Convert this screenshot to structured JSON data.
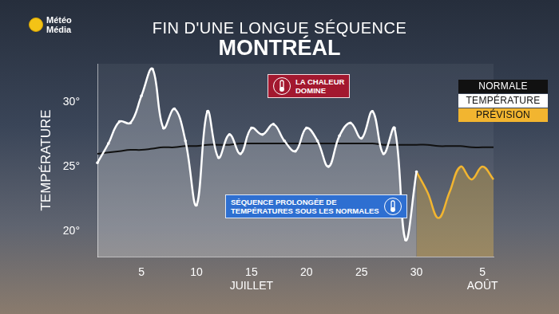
{
  "chart_data": {
    "type": "line",
    "brand": [
      "Météo",
      "Média"
    ],
    "title": "FIN D'UNE LONGUE SÉQUENCE",
    "subtitle": "MONTRÉAL",
    "y_label": "TEMPÉRATURE",
    "categories": [
      null,
      null,
      null,
      null,
      "5",
      null,
      null,
      null,
      null,
      "10",
      null,
      null,
      null,
      null,
      "15",
      null,
      null,
      null,
      null,
      "20",
      null,
      null,
      null,
      null,
      "25",
      null,
      null,
      null,
      null,
      "30",
      null,
      null,
      null,
      null,
      null,
      "5",
      null
    ],
    "x_groups": [
      {
        "label": "JUILLET",
        "at": 14
      },
      {
        "label": "AOÛT",
        "at": 35
      }
    ],
    "ylim": [
      18,
      33
    ],
    "yticks": [
      {
        "value": 20,
        "label": "20°"
      },
      {
        "value": 25,
        "label": "25°"
      },
      {
        "value": 30,
        "label": "30°"
      }
    ],
    "grid": false,
    "legend": "right",
    "series": [
      {
        "name": "NORMALE",
        "color": "#111111",
        "marker": "none",
        "values": [
          26,
          26.1,
          26.2,
          26.3,
          26.3,
          26.4,
          26.5,
          26.5,
          26.6,
          26.6,
          26.7,
          26.7,
          26.7,
          26.8,
          26.8,
          26.8,
          26.8,
          26.8,
          26.8,
          26.8,
          26.8,
          26.8,
          26.8,
          26.8,
          26.8,
          26.8,
          26.7,
          26.7,
          26.7,
          26.7,
          26.7,
          26.6,
          26.6,
          26.6,
          26.5,
          26.5,
          26.5
        ]
      },
      {
        "name": "TEMPÉRATURE",
        "color": "#ffffff",
        "marker": "circle",
        "values": [
          25.3,
          26.8,
          28.5,
          28.4,
          30.5,
          32.6,
          28,
          29.5,
          27,
          22,
          29.3,
          25.7,
          27.5,
          26,
          28,
          27.5,
          28.3,
          27,
          26.2,
          28,
          27,
          25,
          27.4,
          28.4,
          27.2,
          29.3,
          26,
          28,
          19.3,
          24.6,
          null,
          null,
          null,
          null,
          null,
          null,
          null
        ]
      },
      {
        "name": "PRÉVISION",
        "color": "#f2b530",
        "marker": "none",
        "values": [
          null,
          null,
          null,
          null,
          null,
          null,
          null,
          null,
          null,
          null,
          null,
          null,
          null,
          null,
          null,
          null,
          null,
          null,
          null,
          null,
          null,
          null,
          null,
          null,
          null,
          null,
          null,
          null,
          null,
          24.6,
          23,
          21,
          23,
          25,
          24,
          25,
          24
        ]
      }
    ],
    "annotations": [
      {
        "lines": [
          "LA CHALEUR",
          "DOMINE"
        ],
        "color": "#a3182f"
      },
      {
        "lines": [
          "SÉQUENCE PROLONGÉE DE",
          "TEMPÉRATURES SOUS LES NORMALES"
        ],
        "color": "#2e6fd1"
      }
    ]
  }
}
